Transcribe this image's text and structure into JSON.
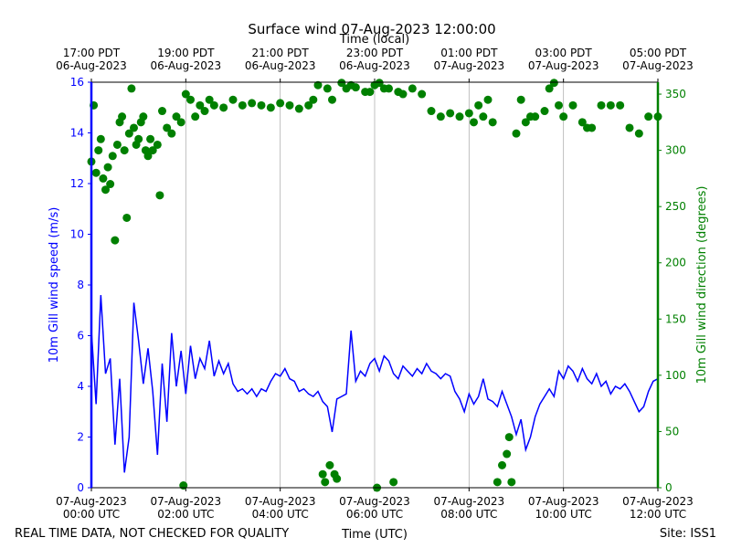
{
  "chart_data": {
    "type": "line-scatter",
    "title": "Surface wind 07-Aug-2023 12:00:00",
    "x_label": "Time (UTC)",
    "x2_label": "Time (local)",
    "y_label": "10m Gill wind speed (m/s)",
    "y2_label": "10m Gill wind direction (degrees)",
    "annotations": [
      "REAL TIME DATA, NOT CHECKED FOR QUALITY",
      "Site: ISS1"
    ],
    "xlim": [
      0,
      12
    ],
    "xticks": [
      {
        "value": 0,
        "label": "07-Aug-2023\n00:00 UTC"
      },
      {
        "value": 2,
        "label": "07-Aug-2023\n02:00 UTC"
      },
      {
        "value": 4,
        "label": "07-Aug-2023\n04:00 UTC"
      },
      {
        "value": 6,
        "label": "07-Aug-2023\n06:00 UTC"
      },
      {
        "value": 8,
        "label": "07-Aug-2023\n08:00 UTC"
      },
      {
        "value": 10,
        "label": "07-Aug-2023\n10:00 UTC"
      },
      {
        "value": 12,
        "label": "07-Aug-2023\n12:00 UTC"
      }
    ],
    "x2ticks": [
      {
        "value": 0,
        "label": "17:00 PDT\n06-Aug-2023"
      },
      {
        "value": 2,
        "label": "19:00 PDT\n06-Aug-2023"
      },
      {
        "value": 4,
        "label": "21:00 PDT\n06-Aug-2023"
      },
      {
        "value": 6,
        "label": "23:00 PDT\n06-Aug-2023"
      },
      {
        "value": 8,
        "label": "01:00 PDT\n07-Aug-2023"
      },
      {
        "value": 10,
        "label": "03:00 PDT\n07-Aug-2023"
      },
      {
        "value": 12,
        "label": "05:00 PDT\n07-Aug-2023"
      }
    ],
    "ylim": [
      0,
      16
    ],
    "yticks": [
      0,
      2,
      4,
      6,
      8,
      10,
      12,
      14,
      16
    ],
    "y2lim": [
      0,
      360.6
    ],
    "y2ticks": [
      0,
      50,
      100,
      150,
      200,
      250,
      300,
      350
    ],
    "grid": "x",
    "series": [
      {
        "kind": "line",
        "color": "#0000ff",
        "axis": "y",
        "x": [
          0,
          0.1,
          0.2,
          0.3,
          0.4,
          0.5,
          0.6,
          0.7,
          0.8,
          0.9,
          1,
          1.1,
          1.2,
          1.3,
          1.4,
          1.5,
          1.6,
          1.7,
          1.8,
          1.9,
          2,
          2.1,
          2.2,
          2.3,
          2.4,
          2.5,
          2.6,
          2.7,
          2.8,
          2.9,
          3,
          3.1,
          3.2,
          3.3,
          3.4,
          3.5,
          3.6,
          3.7,
          3.8,
          3.9,
          4,
          4.1,
          4.2,
          4.3,
          4.4,
          4.5,
          4.6,
          4.7,
          4.8,
          4.9,
          5,
          5.1,
          5.2,
          5.3,
          5.4,
          5.5,
          5.6,
          5.7,
          5.8,
          5.9,
          6,
          6.1,
          6.2,
          6.3,
          6.4,
          6.5,
          6.6,
          6.7,
          6.8,
          6.9,
          7,
          7.1,
          7.2,
          7.3,
          7.4,
          7.5,
          7.6,
          7.7,
          7.8,
          7.9,
          8,
          8.1,
          8.2,
          8.3,
          8.4,
          8.5,
          8.6,
          8.7,
          8.8,
          8.9,
          9,
          9.1,
          9.2,
          9.3,
          9.4,
          9.5,
          9.6,
          9.7,
          9.8,
          9.9,
          10,
          10.1,
          10.2,
          10.3,
          10.4,
          10.5,
          10.6,
          10.7,
          10.8,
          10.9,
          11,
          11.1,
          11.2,
          11.3,
          11.4,
          11.5,
          11.6,
          11.7,
          11.8,
          11.9,
          12
        ],
        "values": [
          6.2,
          3.3,
          7.6,
          4.5,
          5.1,
          1.7,
          4.3,
          0.6,
          2.0,
          7.3,
          5.8,
          4.1,
          5.5,
          3.8,
          1.3,
          4.9,
          2.6,
          6.1,
          4.0,
          5.4,
          3.7,
          5.6,
          4.3,
          5.1,
          4.7,
          5.8,
          4.4,
          5.0,
          4.5,
          4.9,
          4.1,
          3.8,
          3.9,
          3.7,
          3.9,
          3.6,
          3.9,
          3.8,
          4.2,
          4.5,
          4.4,
          4.7,
          4.3,
          4.2,
          3.8,
          3.9,
          3.7,
          3.6,
          3.8,
          3.4,
          3.2,
          2.2,
          3.5,
          3.6,
          3.7,
          6.2,
          4.2,
          4.6,
          4.4,
          4.9,
          5.1,
          4.6,
          5.2,
          5.0,
          4.5,
          4.3,
          4.8,
          4.6,
          4.4,
          4.7,
          4.5,
          4.9,
          4.6,
          4.5,
          4.3,
          4.5,
          4.4,
          3.8,
          3.5,
          3.0,
          3.7,
          3.3,
          3.6,
          4.3,
          3.5,
          3.4,
          3.2,
          3.8,
          3.3,
          2.8,
          2.1,
          2.7,
          1.5,
          2.0,
          2.8,
          3.3,
          3.6,
          3.9,
          3.6,
          4.6,
          4.3,
          4.8,
          4.6,
          4.2,
          4.7,
          4.3,
          4.1,
          4.5,
          4.0,
          4.2,
          3.7,
          4.0,
          3.9,
          4.1,
          3.8,
          3.4,
          3.0,
          3.2,
          3.8,
          4.2,
          4.3
        ]
      },
      {
        "kind": "scatter",
        "color": "#008000",
        "axis": "y2",
        "x": [
          0,
          0.05,
          0.1,
          0.15,
          0.2,
          0.25,
          0.3,
          0.35,
          0.4,
          0.45,
          0.5,
          0.55,
          0.6,
          0.65,
          0.7,
          0.75,
          0.8,
          0.85,
          0.9,
          0.95,
          1,
          1.05,
          1.1,
          1.15,
          1.2,
          1.25,
          1.3,
          1.4,
          1.45,
          1.5,
          1.6,
          1.7,
          1.8,
          1.9,
          1.95,
          2,
          2.1,
          2.2,
          2.3,
          2.4,
          2.5,
          2.6,
          2.8,
          3,
          3.2,
          3.4,
          3.6,
          3.8,
          4,
          4.2,
          4.4,
          4.6,
          4.7,
          4.8,
          4.9,
          4.95,
          5,
          5.05,
          5.1,
          5.15,
          5.2,
          5.3,
          5.4,
          5.5,
          5.6,
          5.8,
          5.9,
          6,
          6.05,
          6.1,
          6.2,
          6.3,
          6.4,
          6.5,
          6.6,
          6.8,
          7,
          7.2,
          7.4,
          7.6,
          7.8,
          8,
          8.1,
          8.2,
          8.3,
          8.4,
          8.5,
          8.6,
          8.7,
          8.8,
          8.85,
          8.9,
          9,
          9.1,
          9.2,
          9.3,
          9.4,
          9.6,
          9.7,
          9.8,
          9.9,
          10,
          10.2,
          10.4,
          10.5,
          10.6,
          10.8,
          11,
          11.2,
          11.4,
          11.6,
          11.8,
          12
        ],
        "values": [
          290,
          340,
          280,
          300,
          310,
          275,
          265,
          285,
          270,
          295,
          220,
          305,
          325,
          330,
          300,
          240,
          315,
          355,
          320,
          305,
          310,
          325,
          330,
          300,
          295,
          310,
          300,
          305,
          260,
          335,
          320,
          315,
          330,
          325,
          2,
          350,
          345,
          330,
          340,
          335,
          345,
          340,
          338,
          345,
          340,
          342,
          340,
          338,
          342,
          340,
          337,
          340,
          345,
          358,
          12,
          5,
          355,
          20,
          345,
          12,
          8,
          360,
          355,
          358,
          356,
          352,
          352,
          358,
          0,
          360,
          355,
          355,
          5,
          352,
          350,
          355,
          350,
          335,
          330,
          333,
          330,
          333,
          325,
          340,
          330,
          345,
          325,
          5,
          20,
          30,
          45,
          5,
          315,
          345,
          325,
          330,
          330,
          335,
          355,
          360,
          340,
          330,
          340,
          325,
          320,
          320,
          340,
          340,
          340,
          320,
          315,
          330,
          330
        ]
      }
    ]
  }
}
